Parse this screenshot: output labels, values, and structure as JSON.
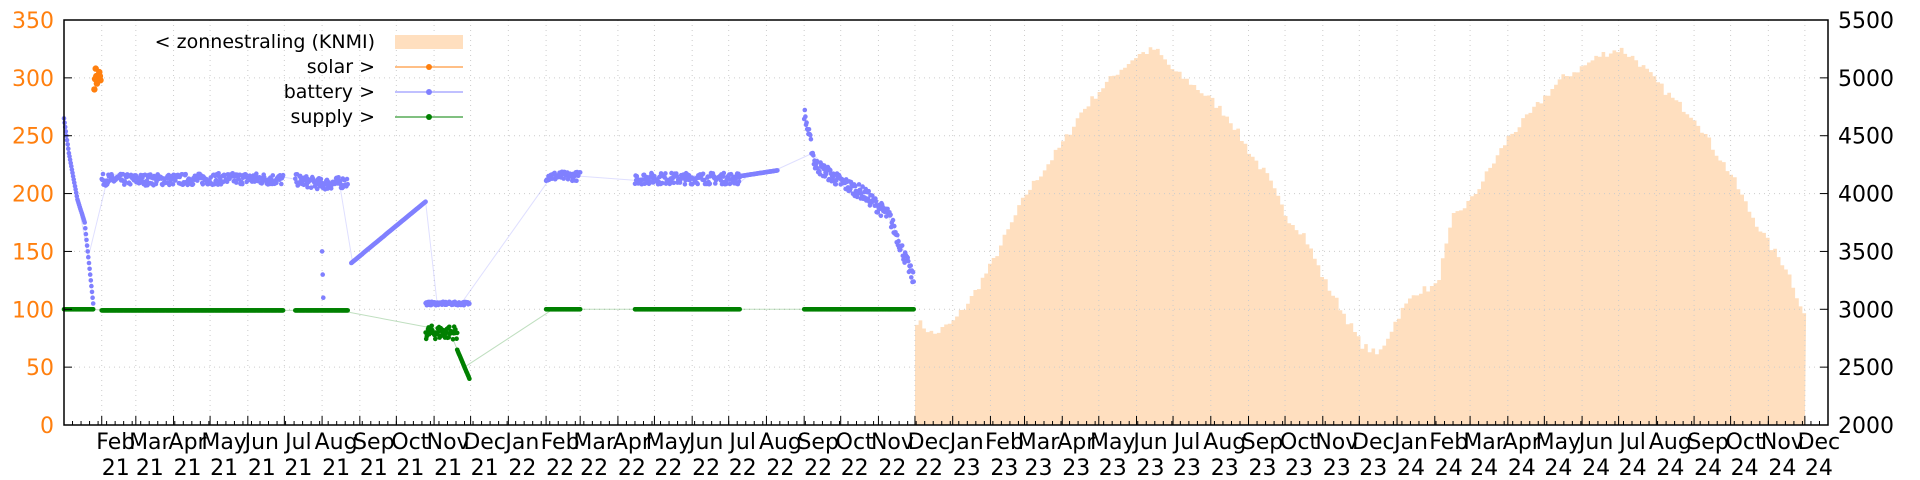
{
  "chart_data": {
    "type": "line",
    "title": "",
    "xlabel": "",
    "ylabel": "",
    "y2label": "",
    "ylim": [
      0,
      350
    ],
    "y2lim": [
      2000,
      5500
    ],
    "yticks": [
      "0",
      "50",
      "100",
      "150",
      "200",
      "250",
      "300",
      "350"
    ],
    "y2ticks": [
      "2000",
      "2500",
      "3000",
      "3500",
      "4000",
      "4500",
      "5000",
      "5500"
    ],
    "x_tick_labels": [
      {
        "month": "Feb",
        "year": "21"
      },
      {
        "month": "Mar",
        "year": "21"
      },
      {
        "month": "Apr",
        "year": "21"
      },
      {
        "month": "May",
        "year": "21"
      },
      {
        "month": "Jun",
        "year": "21"
      },
      {
        "month": "Jul",
        "year": "21"
      },
      {
        "month": "Aug",
        "year": "21"
      },
      {
        "month": "Sep",
        "year": "21"
      },
      {
        "month": "Oct",
        "year": "21"
      },
      {
        "month": "Nov",
        "year": "21"
      },
      {
        "month": "Dec",
        "year": "21"
      },
      {
        "month": "Jan",
        "year": "22"
      },
      {
        "month": "Feb",
        "year": "22"
      },
      {
        "month": "Mar",
        "year": "22"
      },
      {
        "month": "Apr",
        "year": "22"
      },
      {
        "month": "May",
        "year": "22"
      },
      {
        "month": "Jun",
        "year": "22"
      },
      {
        "month": "Jul",
        "year": "22"
      },
      {
        "month": "Aug",
        "year": "22"
      },
      {
        "month": "Sep",
        "year": "22"
      },
      {
        "month": "Oct",
        "year": "22"
      },
      {
        "month": "Nov",
        "year": "22"
      },
      {
        "month": "Dec",
        "year": "22"
      },
      {
        "month": "Jan",
        "year": "23"
      },
      {
        "month": "Feb",
        "year": "23"
      },
      {
        "month": "Mar",
        "year": "23"
      },
      {
        "month": "Apr",
        "year": "23"
      },
      {
        "month": "May",
        "year": "23"
      },
      {
        "month": "Jun",
        "year": "23"
      },
      {
        "month": "Jul",
        "year": "23"
      },
      {
        "month": "Aug",
        "year": "23"
      },
      {
        "month": "Sep",
        "year": "23"
      },
      {
        "month": "Oct",
        "year": "23"
      },
      {
        "month": "Nov",
        "year": "23"
      },
      {
        "month": "Dec",
        "year": "23"
      },
      {
        "month": "Jan",
        "year": "24"
      },
      {
        "month": "Feb",
        "year": "24"
      },
      {
        "month": "Mar",
        "year": "24"
      },
      {
        "month": "Apr",
        "year": "24"
      },
      {
        "month": "May",
        "year": "24"
      },
      {
        "month": "Jun",
        "year": "24"
      },
      {
        "month": "Jul",
        "year": "24"
      },
      {
        "month": "Aug",
        "year": "24"
      },
      {
        "month": "Sep",
        "year": "24"
      },
      {
        "month": "Oct",
        "year": "24"
      },
      {
        "month": "Nov",
        "year": "24"
      },
      {
        "month": "Dec",
        "year": "24"
      }
    ],
    "grid": true,
    "legend_position": "top-left",
    "series": [
      {
        "name": "< zonnestraling (KNMI)",
        "axis": "right",
        "style": "filled-steps",
        "color": "#ffdfbf",
        "x": [
          "2022-12-01",
          "2022-12-15",
          "2023-01-01",
          "2023-01-15",
          "2023-02-01",
          "2023-02-15",
          "2023-03-01",
          "2023-03-15",
          "2023-04-01",
          "2023-04-15",
          "2023-05-01",
          "2023-05-15",
          "2023-06-01",
          "2023-06-15",
          "2023-07-01",
          "2023-07-15",
          "2023-08-01",
          "2023-08-15",
          "2023-09-01",
          "2023-09-15",
          "2023-10-01",
          "2023-10-15",
          "2023-11-01",
          "2023-11-15",
          "2023-12-01",
          "2023-12-15",
          "2024-01-01",
          "2024-01-15",
          "2024-02-01",
          "2024-02-15",
          "2024-03-01",
          "2024-03-15",
          "2024-04-01",
          "2024-04-15",
          "2024-05-01",
          "2024-05-15",
          "2024-06-01",
          "2024-06-15",
          "2024-07-01",
          "2024-07-15",
          "2024-08-01",
          "2024-08-15",
          "2024-09-01",
          "2024-09-15",
          "2024-10-01",
          "2024-10-15",
          "2024-11-01",
          "2024-11-15",
          "2024-12-01"
        ],
        "values": [
          2900,
          2780,
          2900,
          3100,
          3400,
          3700,
          4000,
          4200,
          4450,
          4700,
          4900,
          5050,
          5200,
          5250,
          5050,
          4950,
          4800,
          4650,
          4350,
          4150,
          3800,
          3650,
          3250,
          3000,
          2700,
          2600,
          2950,
          3150,
          3200,
          3800,
          3950,
          4200,
          4500,
          4650,
          4850,
          5000,
          5100,
          5200,
          5250,
          5150,
          4950,
          4800,
          4650,
          4400,
          4150,
          3850,
          3550,
          3350,
          2900
        ]
      },
      {
        "name": "solar >",
        "axis": "left",
        "style": "points",
        "color": "#ff7f0e",
        "x": [
          "2021-01-26",
          "2021-01-27",
          "2021-01-28",
          "2021-01-29",
          "2021-01-30",
          "2021-01-31"
        ],
        "values": [
          290,
          308,
          295,
          300,
          305,
          298
        ]
      },
      {
        "name": "battery >",
        "axis": "left",
        "style": "points",
        "color": "#8080ff",
        "segments": [
          {
            "x": [
              "2021-01-01",
              "2021-01-05",
              "2021-01-12",
              "2021-01-18",
              "2021-01-22",
              "2021-01-25"
            ],
            "values": [
              265,
              235,
              195,
              175,
              135,
              105
            ]
          },
          {
            "x": [
              "2021-02-01",
              "2021-04-01",
              "2021-06-01",
              "2021-06-30"
            ],
            "values": [
              212,
              212,
              213,
              212
            ],
            "band": 10
          },
          {
            "x": [
              "2021-07-10",
              "2021-08-01",
              "2021-08-22"
            ],
            "values": [
              212,
              208,
              210
            ],
            "band": 10
          },
          {
            "x": [
              "2021-08-01",
              "2021-08-02"
            ],
            "values": [
              150,
              110
            ]
          },
          {
            "x": [
              "2021-08-25",
              "2021-10-25"
            ],
            "values": [
              140,
              193
            ]
          },
          {
            "x": [
              "2021-10-25",
              "2021-11-30"
            ],
            "values": [
              105,
              105
            ],
            "band": 3
          },
          {
            "x": [
              "2022-02-01",
              "2022-03-01"
            ],
            "values": [
              215,
              215
            ],
            "band": 8
          },
          {
            "x": [
              "2022-04-15",
              "2022-07-10"
            ],
            "values": [
              213,
              213
            ],
            "band": 10
          },
          {
            "x": [
              "2022-07-10",
              "2022-08-10"
            ],
            "values": [
              215,
              220
            ]
          },
          {
            "x": [
              "2022-09-01",
              "2022-09-10",
              "2022-10-01",
              "2022-10-20",
              "2022-11-10",
              "2022-11-30"
            ],
            "values": [
              270,
              225,
              210,
              200,
              180,
              125
            ],
            "band": 12
          }
        ]
      },
      {
        "name": "supply >",
        "axis": "left",
        "style": "points",
        "color": "#008000",
        "segments": [
          {
            "x": [
              "2021-01-01",
              "2021-01-25"
            ],
            "values": [
              100,
              100
            ]
          },
          {
            "x": [
              "2021-02-01",
              "2021-06-30"
            ],
            "values": [
              99,
              99
            ]
          },
          {
            "x": [
              "2021-07-10",
              "2021-08-22"
            ],
            "values": [
              99,
              99
            ]
          },
          {
            "x": [
              "2021-10-25",
              "2021-11-20"
            ],
            "values": [
              80,
              80
            ],
            "band": 12
          },
          {
            "x": [
              "2021-11-20",
              "2021-11-30"
            ],
            "values": [
              65,
              40
            ]
          },
          {
            "x": [
              "2022-02-01",
              "2022-03-01"
            ],
            "values": [
              100,
              100
            ]
          },
          {
            "x": [
              "2022-04-15",
              "2022-07-10"
            ],
            "values": [
              100,
              100
            ]
          },
          {
            "x": [
              "2022-09-01",
              "2022-11-30"
            ],
            "values": [
              100,
              100
            ]
          }
        ]
      }
    ]
  }
}
